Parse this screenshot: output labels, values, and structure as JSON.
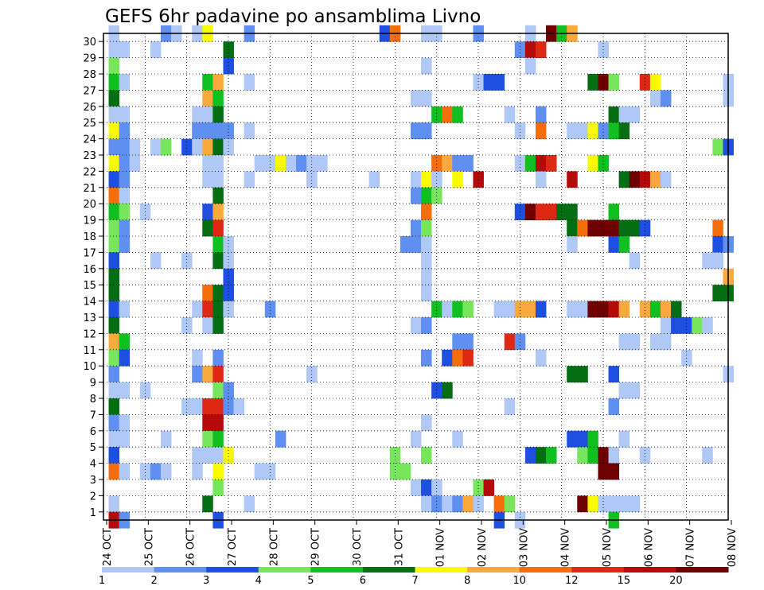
{
  "chart_data": {
    "type": "heatmap",
    "title": "GEFS 6hr padavine po ansamblima Livno",
    "xlabel": "",
    "ylabel": "",
    "x_ticks": [
      "24 OCT",
      "25 OCT",
      "26 OCT",
      "27 OCT",
      "28 OCT",
      "29 OCT",
      "30 OCT",
      "31 OCT",
      "01 NOV",
      "02 NOV",
      "03 NOV",
      "04 NOV",
      "05 NOV",
      "06 NOV",
      "07 NOV",
      "08 NOV"
    ],
    "y_ticks": [
      "1",
      "2",
      "3",
      "4",
      "5",
      "6",
      "7",
      "8",
      "9",
      "10",
      "11",
      "12",
      "13",
      "14",
      "15",
      "16",
      "17",
      "18",
      "19",
      "20",
      "21",
      "22",
      "23",
      "24",
      "25",
      "26",
      "27",
      "28",
      "29",
      "30"
    ],
    "x_range_steps": [
      0,
      60
    ],
    "y_range_members": [
      0,
      30
    ],
    "grid": true,
    "legend_position": "bottom",
    "legend": {
      "labels": [
        "1",
        "2",
        "3",
        "4",
        "5",
        "6",
        "7",
        "8",
        "10",
        "12",
        "15",
        "20"
      ],
      "colors": [
        "#afc8f5",
        "#5f8ff0",
        "#1e4fe0",
        "#78e65a",
        "#10c020",
        "#046e14",
        "#fafa00",
        "#faaa3c",
        "#f56e0a",
        "#dc2814",
        "#b40a0a",
        "#6e0000"
      ]
    },
    "cells": [
      [
        1,
        30,
        1
      ],
      [
        1,
        29,
        1
      ],
      [
        1,
        28,
        4
      ],
      [
        1,
        27,
        5
      ],
      [
        1,
        26,
        6
      ],
      [
        1,
        25,
        1
      ],
      [
        1,
        24,
        7
      ],
      [
        1,
        23,
        2
      ],
      [
        1,
        22,
        7
      ],
      [
        1,
        21,
        3
      ],
      [
        1,
        20,
        9
      ],
      [
        1,
        19,
        5
      ],
      [
        1,
        18,
        4
      ],
      [
        1,
        17,
        4
      ],
      [
        1,
        16,
        3
      ],
      [
        1,
        15,
        6
      ],
      [
        1,
        14,
        6
      ],
      [
        1,
        13,
        3
      ],
      [
        1,
        12,
        6
      ],
      [
        1,
        11,
        8
      ],
      [
        1,
        10,
        4
      ],
      [
        1,
        9,
        2
      ],
      [
        1,
        8,
        1
      ],
      [
        1,
        7,
        6
      ],
      [
        1,
        6,
        2
      ],
      [
        1,
        5,
        1
      ],
      [
        1,
        4,
        3
      ],
      [
        1,
        3,
        9
      ],
      [
        1,
        1,
        1
      ],
      [
        1,
        0,
        11
      ],
      [
        2,
        29,
        1
      ],
      [
        2,
        27,
        1
      ],
      [
        2,
        25,
        1
      ],
      [
        2,
        24,
        2
      ],
      [
        2,
        23,
        2
      ],
      [
        2,
        22,
        2
      ],
      [
        2,
        21,
        2
      ],
      [
        2,
        20,
        1
      ],
      [
        2,
        19,
        4
      ],
      [
        2,
        18,
        2
      ],
      [
        2,
        17,
        2
      ],
      [
        2,
        13,
        1
      ],
      [
        2,
        11,
        5
      ],
      [
        2,
        10,
        3
      ],
      [
        2,
        8,
        1
      ],
      [
        2,
        6,
        1
      ],
      [
        2,
        5,
        1
      ],
      [
        2,
        3,
        1
      ],
      [
        2,
        0,
        2
      ],
      [
        3,
        22,
        1
      ],
      [
        3,
        23,
        1
      ],
      [
        4,
        19,
        1
      ],
      [
        4,
        8,
        1
      ],
      [
        4,
        3,
        1
      ],
      [
        5,
        16,
        1
      ],
      [
        5,
        29,
        1
      ],
      [
        5,
        3,
        2
      ],
      [
        5,
        23,
        1
      ],
      [
        6,
        23,
        4
      ],
      [
        6,
        30,
        2
      ],
      [
        6,
        5,
        1
      ],
      [
        6,
        3,
        1
      ],
      [
        7,
        30,
        1
      ],
      [
        8,
        16,
        1
      ],
      [
        8,
        23,
        3
      ],
      [
        8,
        12,
        1
      ],
      [
        8,
        7,
        1
      ],
      [
        9,
        30,
        1
      ],
      [
        9,
        25,
        1
      ],
      [
        9,
        24,
        2
      ],
      [
        9,
        23,
        1
      ],
      [
        9,
        13,
        1
      ],
      [
        9,
        10,
        1
      ],
      [
        9,
        9,
        2
      ],
      [
        9,
        7,
        1
      ],
      [
        9,
        4,
        1
      ],
      [
        9,
        3,
        1
      ],
      [
        10,
        30,
        7
      ],
      [
        10,
        27,
        5
      ],
      [
        10,
        26,
        8
      ],
      [
        10,
        25,
        1
      ],
      [
        10,
        24,
        2
      ],
      [
        10,
        23,
        8
      ],
      [
        10,
        22,
        1
      ],
      [
        10,
        21,
        1
      ],
      [
        10,
        19,
        3
      ],
      [
        10,
        18,
        6
      ],
      [
        10,
        14,
        9
      ],
      [
        10,
        13,
        10
      ],
      [
        10,
        12,
        1
      ],
      [
        10,
        9,
        8
      ],
      [
        10,
        7,
        10
      ],
      [
        10,
        6,
        11
      ],
      [
        10,
        5,
        4
      ],
      [
        10,
        4,
        1
      ],
      [
        10,
        1,
        6
      ],
      [
        11,
        27,
        8
      ],
      [
        11,
        26,
        5
      ],
      [
        11,
        25,
        6
      ],
      [
        11,
        24,
        2
      ],
      [
        11,
        23,
        6
      ],
      [
        11,
        22,
        1
      ],
      [
        11,
        21,
        1
      ],
      [
        11,
        20,
        6
      ],
      [
        11,
        19,
        8
      ],
      [
        11,
        18,
        10
      ],
      [
        11,
        17,
        5
      ],
      [
        11,
        16,
        6
      ],
      [
        11,
        14,
        6
      ],
      [
        11,
        13,
        6
      ],
      [
        11,
        12,
        6
      ],
      [
        11,
        10,
        2
      ],
      [
        11,
        9,
        10
      ],
      [
        11,
        8,
        4
      ],
      [
        11,
        7,
        10
      ],
      [
        11,
        6,
        11
      ],
      [
        11,
        5,
        5
      ],
      [
        11,
        4,
        1
      ],
      [
        11,
        3,
        7
      ],
      [
        11,
        2,
        4
      ],
      [
        11,
        0,
        3
      ],
      [
        12,
        29,
        6
      ],
      [
        12,
        28,
        3
      ],
      [
        12,
        24,
        2
      ],
      [
        12,
        23,
        1
      ],
      [
        12,
        17,
        1
      ],
      [
        12,
        16,
        1
      ],
      [
        12,
        15,
        3
      ],
      [
        12,
        14,
        3
      ],
      [
        12,
        13,
        1
      ],
      [
        12,
        8,
        2
      ],
      [
        12,
        7,
        2
      ],
      [
        12,
        4,
        7
      ],
      [
        13,
        7,
        1
      ],
      [
        14,
        30,
        2
      ],
      [
        14,
        27,
        1
      ],
      [
        14,
        24,
        1
      ],
      [
        14,
        21,
        1
      ],
      [
        14,
        1,
        1
      ],
      [
        15,
        22,
        1
      ],
      [
        15,
        3,
        1
      ],
      [
        16,
        22,
        1
      ],
      [
        16,
        13,
        2
      ],
      [
        16,
        3,
        1
      ],
      [
        17,
        22,
        7
      ],
      [
        17,
        5,
        2
      ],
      [
        18,
        22,
        8
      ],
      [
        18,
        22,
        1
      ],
      [
        19,
        22,
        2
      ],
      [
        20,
        22,
        1
      ],
      [
        20,
        21,
        1
      ],
      [
        20,
        9,
        1
      ],
      [
        21,
        22,
        1
      ],
      [
        26,
        21,
        1
      ],
      [
        27,
        30,
        3
      ],
      [
        28,
        30,
        9
      ],
      [
        28,
        4,
        4
      ],
      [
        28,
        3,
        4
      ],
      [
        29,
        3,
        4
      ],
      [
        29,
        17,
        2
      ],
      [
        30,
        17,
        2
      ],
      [
        30,
        18,
        2
      ],
      [
        30,
        20,
        2
      ],
      [
        30,
        21,
        1
      ],
      [
        30,
        26,
        1
      ],
      [
        30,
        24,
        2
      ],
      [
        30,
        12,
        1
      ],
      [
        30,
        5,
        1
      ],
      [
        30,
        2,
        1
      ],
      [
        31,
        26,
        1
      ],
      [
        31,
        24,
        2
      ],
      [
        31,
        21,
        7
      ],
      [
        31,
        20,
        5
      ],
      [
        31,
        19,
        9
      ],
      [
        31,
        18,
        4
      ],
      [
        31,
        17,
        1
      ],
      [
        31,
        16,
        1
      ],
      [
        31,
        15,
        1
      ],
      [
        31,
        14,
        1
      ],
      [
        31,
        12,
        2
      ],
      [
        31,
        10,
        2
      ],
      [
        31,
        6,
        1
      ],
      [
        31,
        4,
        4
      ],
      [
        31,
        2,
        3
      ],
      [
        31,
        1,
        1
      ],
      [
        31,
        30,
        1
      ],
      [
        31,
        28,
        1
      ],
      [
        32,
        30,
        1
      ],
      [
        32,
        25,
        5
      ],
      [
        32,
        22,
        9
      ],
      [
        32,
        21,
        1
      ],
      [
        32,
        20,
        4
      ],
      [
        32,
        13,
        5
      ],
      [
        32,
        8,
        3
      ],
      [
        32,
        2,
        1
      ],
      [
        32,
        1,
        2
      ],
      [
        33,
        25,
        9
      ],
      [
        33,
        22,
        8
      ],
      [
        33,
        13,
        1
      ],
      [
        33,
        10,
        3
      ],
      [
        33,
        8,
        6
      ],
      [
        33,
        1,
        1
      ],
      [
        34,
        25,
        5
      ],
      [
        34,
        22,
        2
      ],
      [
        34,
        21,
        7
      ],
      [
        34,
        13,
        5
      ],
      [
        34,
        11,
        2
      ],
      [
        34,
        10,
        9
      ],
      [
        34,
        5,
        1
      ],
      [
        34,
        1,
        2
      ],
      [
        35,
        22,
        2
      ],
      [
        35,
        13,
        4
      ],
      [
        35,
        11,
        2
      ],
      [
        35,
        10,
        10
      ],
      [
        35,
        1,
        8
      ],
      [
        36,
        30,
        2
      ],
      [
        36,
        27,
        1
      ],
      [
        36,
        21,
        11
      ],
      [
        36,
        2,
        4
      ],
      [
        36,
        1,
        1
      ],
      [
        37,
        27,
        3
      ],
      [
        37,
        2,
        11
      ],
      [
        38,
        27,
        3
      ],
      [
        38,
        13,
        1
      ],
      [
        38,
        0,
        3
      ],
      [
        38,
        1,
        9
      ],
      [
        39,
        25,
        1
      ],
      [
        39,
        13,
        1
      ],
      [
        39,
        11,
        10
      ],
      [
        39,
        7,
        1
      ],
      [
        39,
        1,
        4
      ],
      [
        40,
        29,
        2
      ],
      [
        40,
        24,
        1
      ],
      [
        40,
        22,
        1
      ],
      [
        40,
        19,
        3
      ],
      [
        40,
        13,
        8
      ],
      [
        40,
        11,
        2
      ],
      [
        40,
        0,
        1
      ],
      [
        41,
        30,
        1
      ],
      [
        41,
        29,
        11
      ],
      [
        41,
        28,
        1
      ],
      [
        41,
        22,
        5
      ],
      [
        41,
        19,
        12
      ],
      [
        41,
        13,
        8
      ],
      [
        41,
        4,
        3
      ],
      [
        42,
        29,
        10
      ],
      [
        42,
        25,
        2
      ],
      [
        42,
        24,
        9
      ],
      [
        42,
        22,
        11
      ],
      [
        42,
        21,
        1
      ],
      [
        42,
        19,
        10
      ],
      [
        42,
        13,
        3
      ],
      [
        42,
        4,
        6
      ],
      [
        42,
        10,
        1
      ],
      [
        43,
        30,
        12
      ],
      [
        43,
        22,
        10
      ],
      [
        43,
        19,
        10
      ],
      [
        43,
        4,
        5
      ],
      [
        44,
        30,
        5
      ],
      [
        44,
        19,
        6
      ],
      [
        45,
        30,
        8
      ],
      [
        45,
        24,
        1
      ],
      [
        45,
        21,
        11
      ],
      [
        45,
        19,
        6
      ],
      [
        45,
        18,
        6
      ],
      [
        45,
        17,
        1
      ],
      [
        45,
        13,
        1
      ],
      [
        45,
        9,
        6
      ],
      [
        45,
        5,
        3
      ],
      [
        46,
        24,
        1
      ],
      [
        46,
        18,
        9
      ],
      [
        46,
        13,
        1
      ],
      [
        46,
        9,
        6
      ],
      [
        46,
        5,
        3
      ],
      [
        46,
        4,
        4
      ],
      [
        46,
        1,
        12
      ],
      [
        47,
        27,
        6
      ],
      [
        47,
        24,
        7
      ],
      [
        47,
        22,
        7
      ],
      [
        47,
        18,
        12
      ],
      [
        47,
        13,
        12
      ],
      [
        47,
        5,
        5
      ],
      [
        47,
        4,
        5
      ],
      [
        47,
        1,
        7
      ],
      [
        48,
        29,
        1
      ],
      [
        48,
        27,
        12
      ],
      [
        48,
        24,
        2
      ],
      [
        48,
        22,
        5
      ],
      [
        48,
        18,
        12
      ],
      [
        48,
        13,
        12
      ],
      [
        48,
        4,
        12
      ],
      [
        48,
        3,
        12
      ],
      [
        48,
        1,
        1
      ],
      [
        49,
        27,
        4
      ],
      [
        49,
        25,
        6
      ],
      [
        49,
        24,
        5
      ],
      [
        49,
        19,
        5
      ],
      [
        49,
        18,
        12
      ],
      [
        49,
        17,
        3
      ],
      [
        49,
        13,
        11
      ],
      [
        49,
        9,
        3
      ],
      [
        49,
        7,
        2
      ],
      [
        49,
        4,
        1
      ],
      [
        49,
        3,
        12
      ],
      [
        49,
        1,
        1
      ],
      [
        49,
        0,
        5
      ],
      [
        50,
        25,
        1
      ],
      [
        50,
        24,
        6
      ],
      [
        50,
        21,
        6
      ],
      [
        50,
        18,
        6
      ],
      [
        50,
        17,
        5
      ],
      [
        50,
        13,
        8
      ],
      [
        50,
        11,
        1
      ],
      [
        50,
        8,
        1
      ],
      [
        50,
        5,
        1
      ],
      [
        50,
        1,
        1
      ],
      [
        51,
        25,
        1
      ],
      [
        51,
        21,
        12
      ],
      [
        51,
        18,
        6
      ],
      [
        51,
        16,
        1
      ],
      [
        51,
        11,
        1
      ],
      [
        51,
        8,
        1
      ],
      [
        51,
        1,
        1
      ],
      [
        52,
        27,
        10
      ],
      [
        52,
        21,
        11
      ],
      [
        52,
        18,
        3
      ],
      [
        52,
        13,
        8
      ],
      [
        52,
        4,
        1
      ],
      [
        53,
        27,
        7
      ],
      [
        53,
        26,
        1
      ],
      [
        53,
        21,
        8
      ],
      [
        53,
        13,
        5
      ],
      [
        53,
        11,
        1
      ],
      [
        54,
        26,
        2
      ],
      [
        54,
        21,
        1
      ],
      [
        54,
        13,
        8
      ],
      [
        54,
        12,
        1
      ],
      [
        54,
        11,
        1
      ],
      [
        55,
        13,
        6
      ],
      [
        55,
        12,
        3
      ],
      [
        56,
        12,
        3
      ],
      [
        56,
        10,
        1
      ],
      [
        57,
        12,
        4
      ],
      [
        58,
        16,
        1
      ],
      [
        58,
        12,
        1
      ],
      [
        58,
        4,
        1
      ],
      [
        59,
        23,
        4
      ],
      [
        59,
        18,
        9
      ],
      [
        59,
        17,
        3
      ],
      [
        59,
        16,
        1
      ],
      [
        59,
        14,
        6
      ],
      [
        60,
        27,
        1
      ],
      [
        60,
        26,
        1
      ],
      [
        60,
        23,
        3
      ],
      [
        60,
        17,
        2
      ],
      [
        60,
        15,
        8
      ],
      [
        60,
        14,
        6
      ],
      [
        60,
        9,
        1
      ]
    ]
  }
}
